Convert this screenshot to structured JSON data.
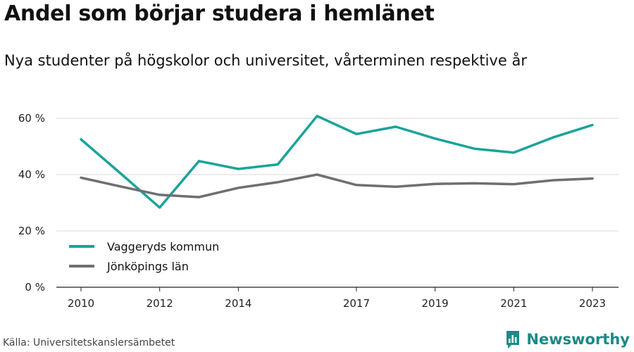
{
  "title": "Andel som börjar studera i hemlänet",
  "subtitle": "Nya studenter på högskolor och universitet, vårterminen respektive år",
  "source": "Källa: Universitetskanslersämbetet",
  "brand": {
    "name": "Newsworthy",
    "icon": "bar-chart-logo-icon",
    "color": "#1a8a86"
  },
  "chart_data": {
    "type": "line",
    "x": [
      2010,
      2011,
      2012,
      2013,
      2014,
      2015,
      2016,
      2017,
      2018,
      2019,
      2020,
      2021,
      2022,
      2023
    ],
    "x_tick_labels": [
      "2010",
      "2012",
      "2014",
      "2017",
      "2019",
      "2021",
      "2023"
    ],
    "y_tick_labels": [
      "0 %",
      "20 %",
      "40 %",
      "60 %"
    ],
    "y_ticks": [
      0,
      20,
      40,
      60
    ],
    "ylim": [
      0,
      65
    ],
    "grid": true,
    "legend_placement": "bottom-left",
    "series": [
      {
        "name": "Vaggeryds kommun",
        "color": "#1aa39a",
        "values": [
          52.5,
          40.5,
          28.3,
          44.8,
          42.0,
          43.6,
          60.8,
          54.4,
          57.0,
          52.8,
          49.2,
          47.8,
          53.2,
          57.6
        ]
      },
      {
        "name": "Jönköpings län",
        "color": "#6f6e73",
        "values": [
          38.9,
          35.8,
          32.8,
          32.0,
          35.3,
          37.3,
          40.0,
          36.3,
          35.7,
          36.7,
          36.9,
          36.6,
          38.0,
          38.6
        ]
      }
    ]
  }
}
